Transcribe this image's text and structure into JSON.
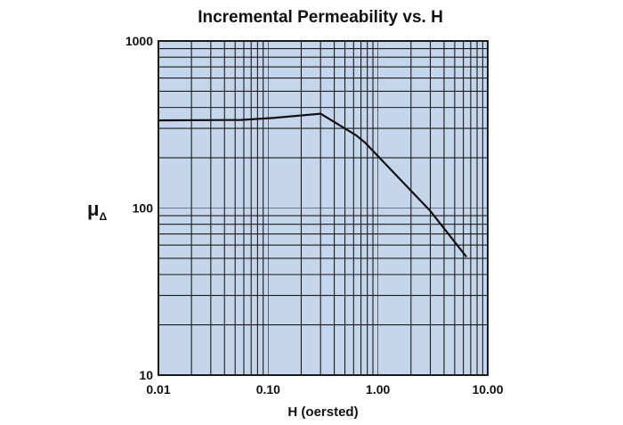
{
  "chart_data": {
    "type": "line",
    "title": "Incremental Permeability vs. H",
    "xlabel": "H (oersted)",
    "ylabel": "μ",
    "ylabel_sub": "Δ",
    "xscale": "log",
    "yscale": "log",
    "xlim": [
      0.01,
      10
    ],
    "ylim": [
      10,
      1000
    ],
    "xticks": [
      0.01,
      0.1,
      1,
      10
    ],
    "xtick_labels": [
      "0.01",
      "0.10",
      "1.00",
      "10.00"
    ],
    "yticks": [
      10,
      100,
      1000
    ],
    "ytick_labels": [
      "10",
      "100",
      "1000"
    ],
    "grid": true,
    "colors": {
      "plot_bg": "#c5d6ec",
      "grid": "#1a1a1a",
      "line": "#111111"
    },
    "series": [
      {
        "name": "μΔ",
        "x": [
          0.01,
          0.056,
          0.111,
          0.3,
          0.63,
          0.76,
          3.0,
          6.4
        ],
        "y": [
          335,
          337,
          346,
          367,
          273,
          247,
          96,
          51
        ]
      }
    ]
  }
}
